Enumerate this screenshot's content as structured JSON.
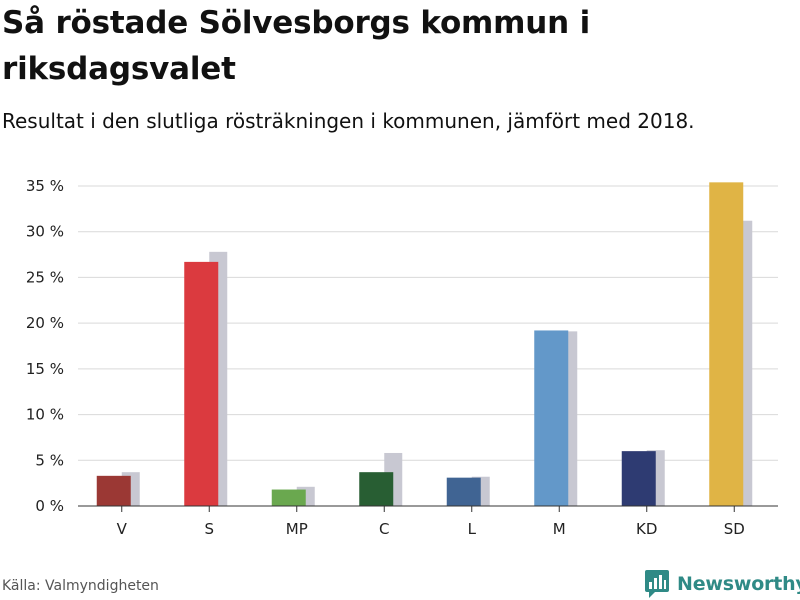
{
  "title": "Så röstade Sölvesborgs kommun i riksdagsvalet",
  "subtitle": "Resultat i den slutliga rösträkningen i kommunen, jämfört med 2018.",
  "source": "Källa: Valmyndigheten",
  "brand": {
    "name": "Newsworthy",
    "icon": "bar-chart-speech-icon",
    "color": "#2f8a86"
  },
  "chart_data": {
    "type": "bar",
    "title": "Så röstade Sölvesborgs kommun i riksdagsvalet",
    "subtitle": "Resultat i den slutliga rösträkningen i kommunen, jämfört med 2018.",
    "categories": [
      "V",
      "S",
      "MP",
      "C",
      "L",
      "M",
      "KD",
      "SD"
    ],
    "series": [
      {
        "values": [
          3.3,
          26.7,
          1.8,
          3.7,
          3.1,
          19.2,
          6.0,
          35.4
        ],
        "colors": [
          "#9b3834",
          "#db3a3f",
          "#6aa84f",
          "#285e33",
          "#406493",
          "#6398c9",
          "#2e3b72",
          "#e0b445"
        ]
      },
      {
        "values": [
          3.7,
          27.8,
          2.1,
          5.8,
          3.2,
          19.1,
          6.1,
          31.2
        ],
        "color": "#c8c8d2"
      }
    ],
    "ylim": [
      0,
      35
    ],
    "yticks": [
      0,
      5,
      10,
      15,
      20,
      25,
      30,
      35
    ],
    "ytick_labels": [
      "0 %",
      "5 %",
      "10 %",
      "15 %",
      "20 %",
      "25 %",
      "30 %",
      "35 %"
    ],
    "xlabel": "",
    "ylabel": "",
    "grid": true
  }
}
